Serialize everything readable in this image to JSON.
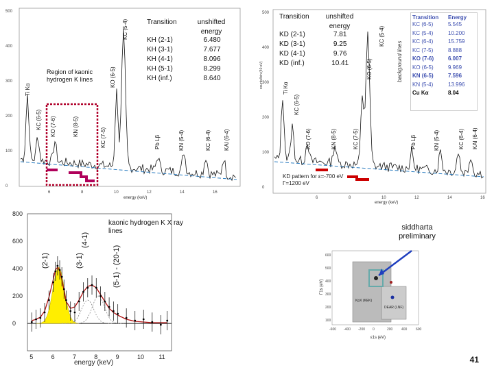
{
  "left_spectrum": {
    "table_header": {
      "col1": "Transition",
      "col2": "unshifted energy"
    },
    "rows": [
      {
        "transition": "KH (2-1)",
        "energy": "6.480"
      },
      {
        "transition": "KH (3-1)",
        "energy": "7.677"
      },
      {
        "transition": "KH (4-1)",
        "energy": "8.096"
      },
      {
        "transition": "KH (5-1)",
        "energy": "8.299"
      },
      {
        "transition": "KH (inf.)",
        "energy": "8.640"
      }
    ],
    "region_label": "Region of kaonic hydrogen K lines",
    "peak_labels": [
      "Ti Kα",
      "KC (6-5)",
      "KO (7-6)",
      "KN (8-5)",
      "KC (7-5)",
      "Pb Lβ",
      "KN (5-4)",
      "KC (6-4)",
      "KAl (6-4)",
      "KO (6-5)",
      "KC (5-4)"
    ],
    "y_ticks": [
      "500",
      "400",
      "300",
      "200",
      "100",
      "0"
    ],
    "x_ticks": [
      "6",
      "8",
      "10",
      "12",
      "14",
      "16"
    ],
    "xlabel": "energy (keV)"
  },
  "right_spectrum": {
    "table_header": {
      "col1": "Transition",
      "col2": "unshifted energy"
    },
    "rows": [
      {
        "transition": "KD (2-1)",
        "energy": "7.81"
      },
      {
        "transition": "KD (3-1)",
        "energy": "9.25"
      },
      {
        "transition": "KD (4-1)",
        "energy": "9.76"
      },
      {
        "transition": "KD (inf.)",
        "energy": "10.41"
      }
    ],
    "bg_table_header": {
      "col1": "Transition",
      "col2": "Energy"
    },
    "bg_rows": [
      {
        "t": "KC (6-5)",
        "e": "5.545"
      },
      {
        "t": "KC (5-4)",
        "e": "10.200"
      },
      {
        "t": "KC (6-4)",
        "e": "15.759"
      },
      {
        "t": "KC (7-5)",
        "e": "8.888"
      },
      {
        "t": "KO (7-6)",
        "e": "6.007"
      },
      {
        "t": "KO (6-5)",
        "e": "9.969"
      },
      {
        "t": "KN (6-5)",
        "e": "7.596"
      },
      {
        "t": "KN (5-4)",
        "e": "13.996"
      },
      {
        "t": "Cu Kα",
        "e": "8.04"
      }
    ],
    "bg_side": "background lines",
    "kd_pattern": "KD pattern for ε=-700 eV Γ=1200 eV",
    "peak_labels": [
      "Ti Kα",
      "KC (6-5)",
      "KO (7-6)",
      "KN (8-5)",
      "KC (7-5)",
      "Pb Lβ",
      "KN (5-4)",
      "KC (6-4)",
      "KAl (6-4)",
      "KO (6-5)",
      "KC (5-4)"
    ],
    "y_ticks": [
      "500",
      "400",
      "300",
      "200",
      "100",
      "0"
    ],
    "x_ticks": [
      "6",
      "8",
      "10",
      "12",
      "14",
      "16"
    ],
    "xlabel": "energy (keV)",
    "ylabel": "counts/bin (40 eV)"
  },
  "chart_data": {
    "type": "scatter",
    "title": "kaonic hydrogen K X ray lines",
    "xlabel": "energy (keV)",
    "ylabel": "",
    "xlim": [
      4.8,
      11.5
    ],
    "ylim": [
      -200,
      800
    ],
    "x_ticks": [
      5,
      6,
      7,
      8,
      9,
      10,
      11
    ],
    "y_ticks": [
      0,
      200,
      400,
      600,
      800
    ],
    "x": [
      5.0,
      5.2,
      5.4,
      5.6,
      5.8,
      6.0,
      6.1,
      6.2,
      6.3,
      6.4,
      6.5,
      6.6,
      6.8,
      7.0,
      7.2,
      7.4,
      7.6,
      7.8,
      8.0,
      8.2,
      8.4,
      8.6,
      8.8,
      9.0,
      9.4,
      9.8,
      10.2,
      10.6,
      11.0,
      11.3
    ],
    "y": [
      10,
      30,
      40,
      80,
      170,
      300,
      380,
      420,
      390,
      340,
      250,
      170,
      90,
      80,
      160,
      230,
      260,
      280,
      260,
      200,
      160,
      120,
      90,
      70,
      40,
      20,
      30,
      10,
      -10,
      20
    ],
    "fit": [
      20,
      30,
      45,
      90,
      190,
      320,
      390,
      410,
      385,
      320,
      240,
      160,
      110,
      120,
      170,
      230,
      270,
      280,
      260,
      210,
      160,
      110,
      80,
      60,
      30,
      15,
      10,
      5,
      5,
      5
    ],
    "transition_labels": [
      "(2-1)",
      "(3-1)",
      "(4-1)",
      "(5-1) - (20-1)"
    ]
  },
  "inset": {
    "label": "siddharta preliminary",
    "x_ticks": [
      "-600",
      "-400",
      "-200",
      "0",
      "200",
      "400",
      "600"
    ],
    "y_ticks": [
      "600",
      "500",
      "400",
      "300",
      "200",
      "100"
    ],
    "xlabel": "ε1s (eV)",
    "ylabel": "Γ1s (eV)",
    "box_labels": [
      "KpX (KEK)",
      "DEAR (LNF)"
    ]
  },
  "page_number": "41",
  "colors": {
    "magenta": "#b0005a",
    "red": "#cc0000",
    "yellow": "#ffee00",
    "fitline": "#b01010",
    "bgtext": "#3d4fb0"
  }
}
